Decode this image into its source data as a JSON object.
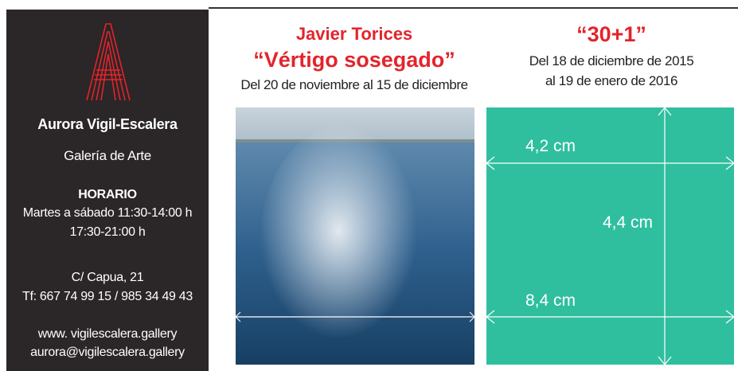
{
  "sidebar": {
    "name": "Aurora Vigil-Escalera",
    "subtitle": "Galería de Arte",
    "hours_title": "HORARIO",
    "hours": [
      "Martes a sábado 11:30-14:00 h",
      "17:30-21:00 h"
    ],
    "address": [
      "C/ Capua, 21",
      "Tf: 667 74 99 15 / 985 34 49 43"
    ],
    "web": [
      "www. vigilescalera.gallery",
      "aurora@vigilescalera.gallery"
    ]
  },
  "exhibitions": [
    {
      "artist": "Javier Torices",
      "title": "“Vértigo sosegado”",
      "dates": [
        "Del 20 de noviembre al 15 de diciembre"
      ]
    },
    {
      "title": "“30+1”",
      "dates": [
        "Del 18 de diciembre de 2015",
        "al 19 de enero de 2016"
      ]
    }
  ],
  "dimensions": [
    "4,2 cm",
    "4,4 cm",
    "8,4 cm"
  ]
}
